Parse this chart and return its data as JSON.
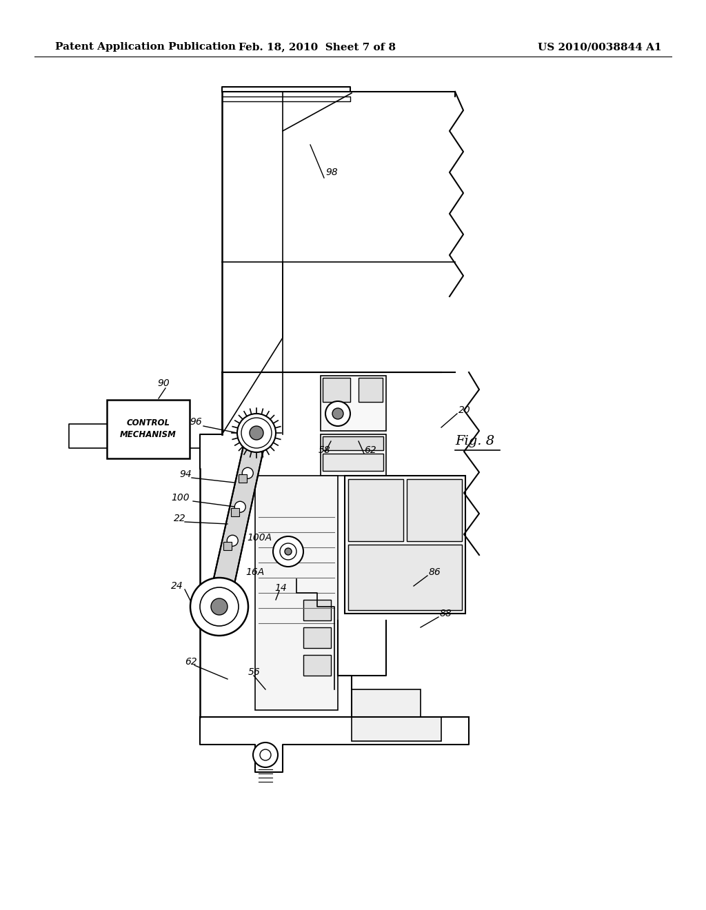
{
  "background_color": "#ffffff",
  "header_left": "Patent Application Publication",
  "header_center": "Feb. 18, 2010  Sheet 7 of 8",
  "header_right": "US 2010/0038844 A1",
  "header_fontsize": 11
}
